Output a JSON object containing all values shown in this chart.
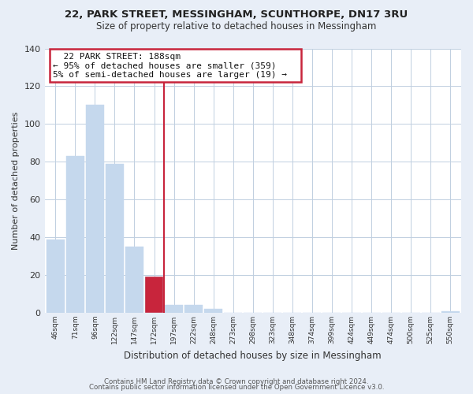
{
  "title": "22, PARK STREET, MESSINGHAM, SCUNTHORPE, DN17 3RU",
  "subtitle": "Size of property relative to detached houses in Messingham",
  "bar_values": [
    39,
    83,
    110,
    79,
    35,
    19,
    4,
    4,
    2,
    0,
    0,
    0,
    0,
    0,
    0,
    0,
    0,
    0,
    0,
    0,
    1
  ],
  "bar_labels": [
    "46sqm",
    "71sqm",
    "96sqm",
    "122sqm",
    "147sqm",
    "172sqm",
    "197sqm",
    "222sqm",
    "248sqm",
    "273sqm",
    "298sqm",
    "323sqm",
    "348sqm",
    "374sqm",
    "399sqm",
    "424sqm",
    "449sqm",
    "474sqm",
    "500sqm",
    "525sqm",
    "550sqm"
  ],
  "bar_color_normal": "#c5d8ed",
  "bar_color_highlight": "#c8253c",
  "highlight_bar_index": 5,
  "ylabel": "Number of detached properties",
  "xlabel": "Distribution of detached houses by size in Messingham",
  "ylim": [
    0,
    140
  ],
  "yticks": [
    0,
    20,
    40,
    60,
    80,
    100,
    120,
    140
  ],
  "annotation_title": "22 PARK STREET: 188sqm",
  "annotation_line1": "← 95% of detached houses are smaller (359)",
  "annotation_line2": "5% of semi-detached houses are larger (19) →",
  "footer1": "Contains HM Land Registry data © Crown copyright and database right 2024.",
  "footer2": "Contains public sector information licensed under the Open Government Licence v3.0.",
  "bg_color": "#e8eef7",
  "plot_bg_color": "#ffffff",
  "box_edge_color": "#c8253c",
  "grid_color": "#c0cfe0",
  "vline_color": "#c8253c",
  "vline_x": 5.5
}
